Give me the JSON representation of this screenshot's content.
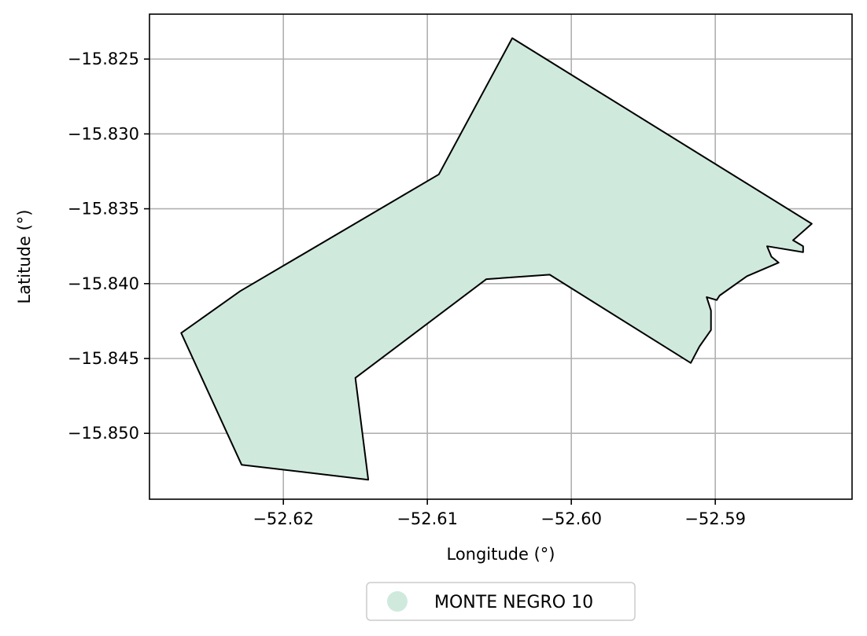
{
  "chart_data": {
    "type": "map",
    "xlabel": "Longitude (°)",
    "ylabel": "Latitude (°)",
    "xlim": [
      -52.6293,
      -52.5805
    ],
    "ylim": [
      -15.8544,
      -15.822
    ],
    "xticks": [
      -52.62,
      -52.61,
      -52.6,
      -52.59
    ],
    "xtick_labels": [
      "−52.62",
      "−52.61",
      "−52.60",
      "−52.59"
    ],
    "yticks": [
      -15.825,
      -15.83,
      -15.835,
      -15.84,
      -15.845,
      -15.85
    ],
    "ytick_labels": [
      "−15.825",
      "−15.830",
      "−15.835",
      "−15.840",
      "−15.845",
      "−15.850"
    ],
    "grid": true,
    "legend_position": "bottom-center",
    "series": [
      {
        "name": "MONTE NEGRO 10",
        "color": "#cfeadd",
        "edge_color": "#000000",
        "polygon": [
          [
            -52.6041,
            -15.8236
          ],
          [
            -52.5833,
            -15.836
          ],
          [
            -52.5846,
            -15.8371
          ],
          [
            -52.5839,
            -15.8375
          ],
          [
            -52.5839,
            -15.8379
          ],
          [
            -52.5864,
            -15.8375
          ],
          [
            -52.5861,
            -15.8382
          ],
          [
            -52.5856,
            -15.8386
          ],
          [
            -52.5878,
            -15.8395
          ],
          [
            -52.5897,
            -15.8408
          ],
          [
            -52.5899,
            -15.8411
          ],
          [
            -52.5906,
            -15.8409
          ],
          [
            -52.5903,
            -15.8418
          ],
          [
            -52.5903,
            -15.8431
          ],
          [
            -52.5911,
            -15.8442
          ],
          [
            -52.5917,
            -15.8453
          ],
          [
            -52.6015,
            -15.8394
          ],
          [
            -52.6059,
            -15.8397
          ],
          [
            -52.615,
            -15.8463
          ],
          [
            -52.6141,
            -15.8531
          ],
          [
            -52.6229,
            -15.8521
          ],
          [
            -52.6271,
            -15.8433
          ],
          [
            -52.623,
            -15.8405
          ],
          [
            -52.6092,
            -15.8327
          ]
        ]
      }
    ]
  }
}
